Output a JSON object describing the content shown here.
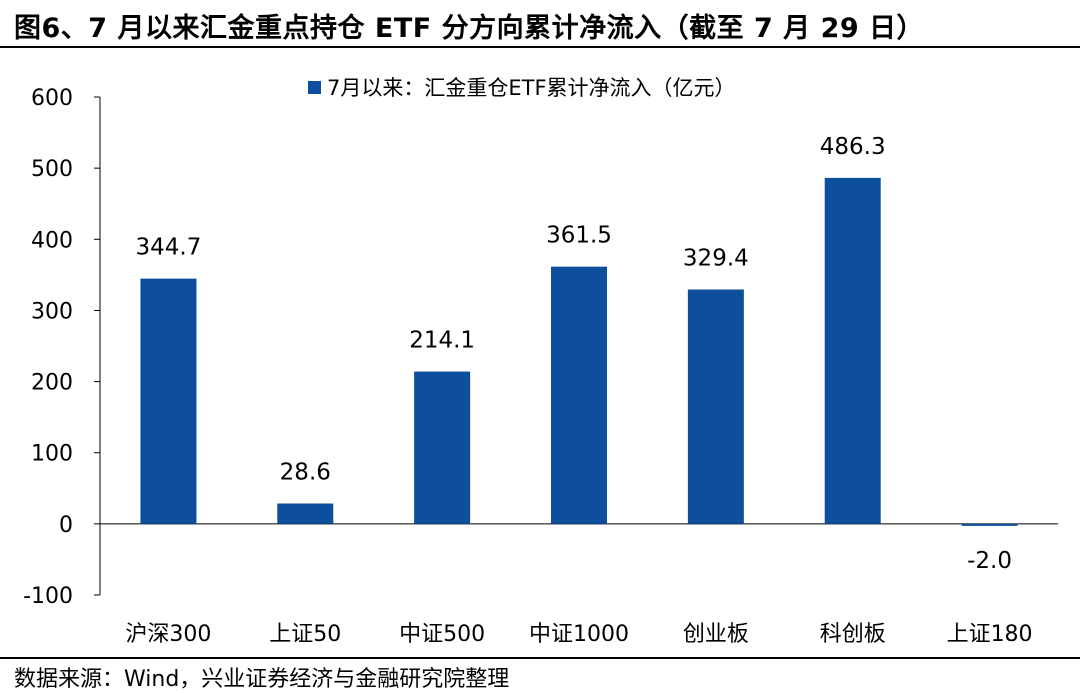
{
  "header": {
    "title": "图6、7 月以来汇金重点持仓 ETF 分方向累计净流入（截至 7 月 29 日）"
  },
  "footer": {
    "source": "数据来源：Wind，兴业证券经济与金融研究院整理"
  },
  "chart_data": {
    "type": "bar",
    "categories": [
      "沪深300",
      "上证50",
      "中证500",
      "中证1000",
      "创业板",
      "科创板",
      "上证180"
    ],
    "series": [
      {
        "name": "7月以来：汇金重仓ETF累计净流入（亿元）",
        "values": [
          344.7,
          28.6,
          214.1,
          361.5,
          329.4,
          486.3,
          -2.0
        ],
        "labels": [
          "344.7",
          "28.6",
          "214.1",
          "361.5",
          "329.4",
          "486.3",
          "-2.0"
        ],
        "color": "#0D4F9C"
      }
    ],
    "ylim": [
      -100,
      600
    ],
    "yticks": [
      -100,
      0,
      100,
      200,
      300,
      400,
      500,
      600
    ],
    "xlabel": "",
    "ylabel": "",
    "legend": "top-center",
    "grid": false
  }
}
